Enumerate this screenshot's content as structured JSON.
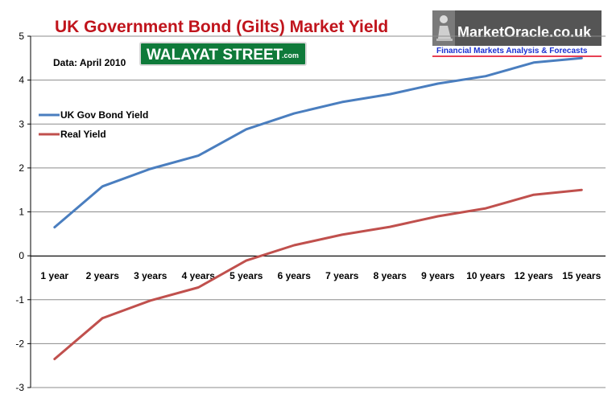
{
  "chart_data": {
    "type": "line",
    "title": "UK Government Bond (Gilts) Market Yield",
    "note": "Data: April 2010",
    "categories": [
      "1 year",
      "2 years",
      "3 years",
      "4 years",
      "5 years",
      "6 years",
      "7 years",
      "8 years",
      "9 years",
      "10 years",
      "12 years",
      "15 years"
    ],
    "series": [
      {
        "name": "UK Gov Bond Yield",
        "color": "#4a7ebf",
        "values": [
          0.65,
          1.58,
          1.98,
          2.28,
          2.88,
          3.24,
          3.5,
          3.68,
          3.92,
          4.09,
          4.4,
          4.5
        ]
      },
      {
        "name": "Real Yield",
        "color": "#c0504d",
        "values": [
          -2.35,
          -1.42,
          -1.02,
          -0.72,
          -0.11,
          0.24,
          0.48,
          0.66,
          0.9,
          1.08,
          1.39,
          1.5
        ]
      }
    ],
    "yticks": [
      5,
      4,
      3,
      2,
      1,
      0,
      -1,
      -2,
      -3
    ],
    "ylim": [
      -3,
      5
    ],
    "grid": true,
    "legend": "left"
  },
  "logos": {
    "walayat": {
      "main": "WALAYAT STREET",
      "suffix": ".com",
      "bg": "#0f7a3a"
    },
    "marketoracle": {
      "name": "MarketOracle.co.uk",
      "tagline": "Financial Markets Analysis & Forecasts",
      "tagline_color": "#1a2fd0"
    }
  }
}
